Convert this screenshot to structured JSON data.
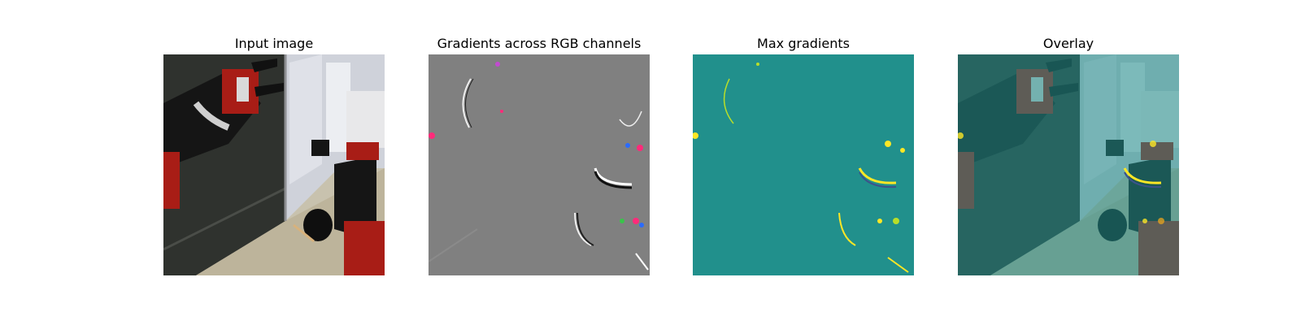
{
  "figure": {
    "panels": [
      {
        "title": "Input image"
      },
      {
        "title": "Gradients across RGB channels"
      },
      {
        "title": "Max gradients"
      },
      {
        "title": "Overlay"
      }
    ]
  }
}
